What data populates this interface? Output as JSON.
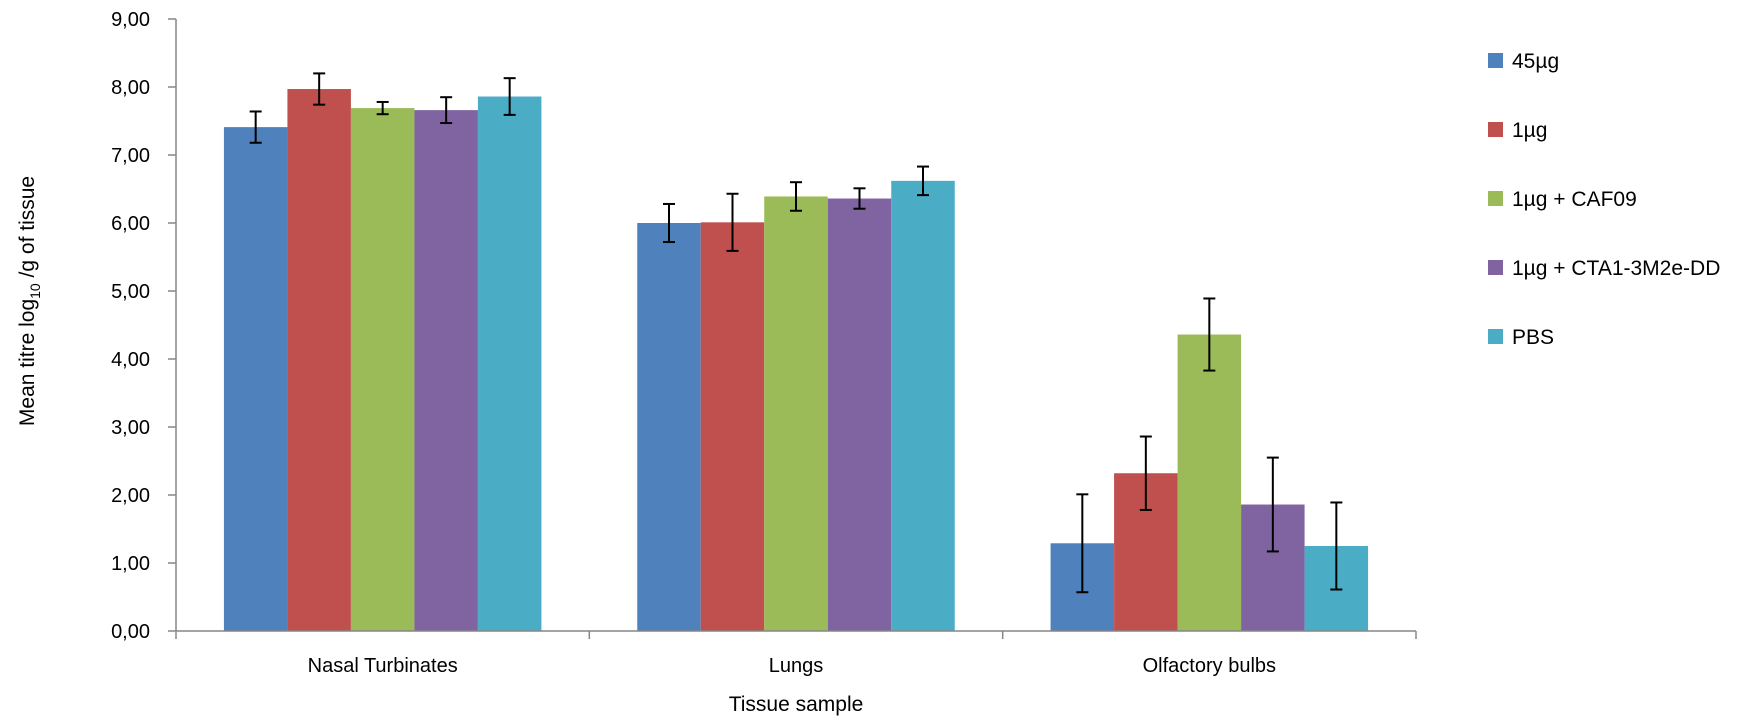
{
  "chart_data": {
    "type": "bar",
    "title": "",
    "xlabel": "Tissue sample",
    "ylabel": {
      "main": "Mean titre log",
      "sub": "10",
      "rest": " /g of tissue"
    },
    "ylim": [
      0,
      9
    ],
    "yticks": [
      "0,00",
      "1,00",
      "2,00",
      "3,00",
      "4,00",
      "5,00",
      "6,00",
      "7,00",
      "8,00",
      "9,00"
    ],
    "categories": [
      "Nasal Turbinates",
      "Lungs",
      "Olfactory bulbs"
    ],
    "grid": false,
    "legend_position": "right",
    "series": [
      {
        "name": "45µg",
        "color": "#4F81BD",
        "values": [
          7.41,
          6.0,
          1.29
        ],
        "errors": [
          0.23,
          0.28,
          0.72
        ]
      },
      {
        "name": "1µg",
        "color": "#C0504D",
        "values": [
          7.97,
          6.01,
          2.32
        ],
        "errors": [
          0.23,
          0.42,
          0.54
        ]
      },
      {
        "name": "1µg + CAF09",
        "color": "#9BBB59",
        "values": [
          7.69,
          6.39,
          4.36
        ],
        "errors": [
          0.09,
          0.21,
          0.53
        ]
      },
      {
        "name": "1µg + CTA1-3M2e-DD",
        "color": "#8064A2",
        "values": [
          7.66,
          6.36,
          1.86
        ],
        "errors": [
          0.19,
          0.15,
          0.69
        ]
      },
      {
        "name": "PBS",
        "color": "#4BACC6",
        "values": [
          7.86,
          6.62,
          1.25
        ],
        "errors": [
          0.27,
          0.21,
          0.64
        ]
      }
    ]
  }
}
